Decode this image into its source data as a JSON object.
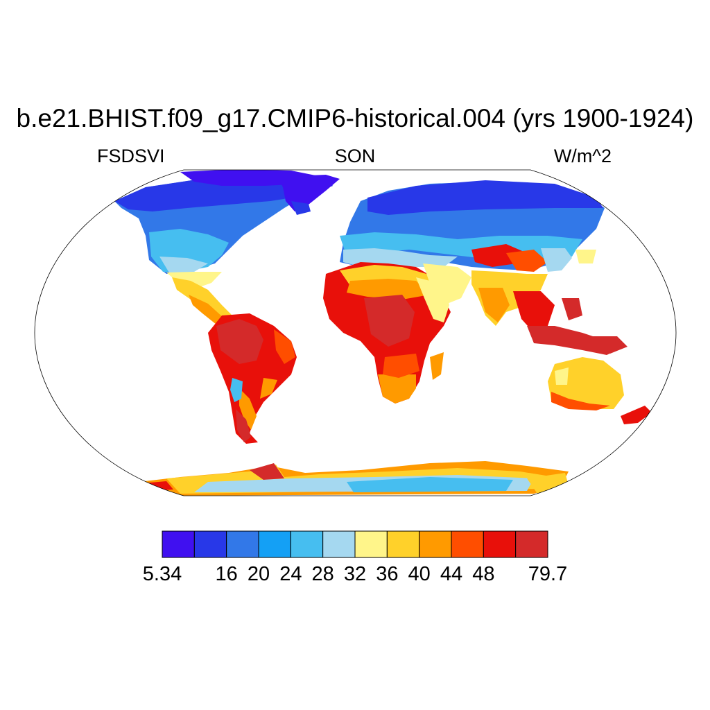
{
  "title": "b.e21.BHIST.f09_g17.CMIP6-historical.004 (yrs 1900-1924)",
  "variable": "FSDSVI",
  "season": "SON",
  "units": "W/m^2",
  "projection": "Robinson",
  "colors": {
    "land_outline": "#000000",
    "ocean": "#ffffff"
  },
  "colorbar": {
    "colors": [
      "#4010f0",
      "#2838e8",
      "#3278e8",
      "#14a0f5",
      "#46bef0",
      "#a5d8f0",
      "#fff58a",
      "#ffd12a",
      "#ff9a00",
      "#ff4e00",
      "#e8100a",
      "#d42a2a"
    ],
    "labels": [
      {
        "text": "5.34",
        "boundary": 0
      },
      {
        "text": "16",
        "boundary": 2
      },
      {
        "text": "20",
        "boundary": 3
      },
      {
        "text": "24",
        "boundary": 4
      },
      {
        "text": "28",
        "boundary": 5
      },
      {
        "text": "32",
        "boundary": 6
      },
      {
        "text": "36",
        "boundary": 7
      },
      {
        "text": "40",
        "boundary": 8
      },
      {
        "text": "44",
        "boundary": 9
      },
      {
        "text": "48",
        "boundary": 10
      },
      {
        "text": "79.7",
        "boundary": 12
      }
    ]
  }
}
